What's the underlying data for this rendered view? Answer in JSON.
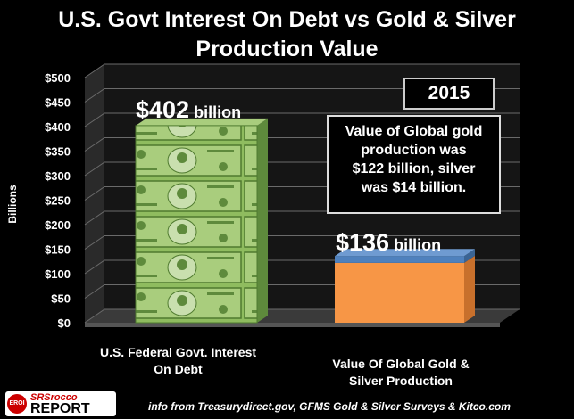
{
  "title_line1": "U.S. Govt Interest On Debt vs Gold & Silver",
  "title_line2": "Production Value",
  "y_axis_label": "Billions",
  "year_badge": "2015",
  "note": [
    "Value of Global gold",
    "production was",
    "$122 billion, silver",
    "was $14 billion."
  ],
  "bar_labels": [
    {
      "amount": "$402",
      "unit": " billion"
    },
    {
      "amount": "$136",
      "unit": " billion"
    }
  ],
  "source": "info from Treasurydirect.gov, GFMS Gold & Silver Surveys & Kitco.com",
  "logo": {
    "badge": "EROI",
    "line1": "SRSrocco",
    "line2": "REPORT"
  },
  "colors": {
    "gold_segment": "#f79646",
    "silver_segment": "#4f81bd",
    "money": "#7fae52",
    "background": "#000000"
  },
  "chart_data": {
    "type": "bar",
    "title": "U.S. Govt Interest On Debt vs Gold & Silver Production Value",
    "ylabel": "Billions",
    "ylim": [
      0,
      500
    ],
    "yticks": [
      0,
      50,
      100,
      150,
      200,
      250,
      300,
      350,
      400,
      450,
      500
    ],
    "ytick_labels": [
      "$0",
      "$50",
      "$100",
      "$150",
      "$200",
      "$250",
      "$300",
      "$350",
      "$400",
      "$450",
      "$500"
    ],
    "categories": [
      "U.S. Federal Govt. Interest On Debt",
      "Value Of Global Gold & Silver Production"
    ],
    "category_lines": [
      [
        "U.S. Federal Govt. Interest",
        "On Debt"
      ],
      [
        "Value Of Global Gold &",
        "Silver Production"
      ]
    ],
    "series": [
      {
        "name": "gold",
        "values": [
          null,
          122
        ]
      },
      {
        "name": "silver",
        "values": [
          null,
          14
        ]
      }
    ],
    "values": [
      402,
      136
    ],
    "grid": true
  }
}
